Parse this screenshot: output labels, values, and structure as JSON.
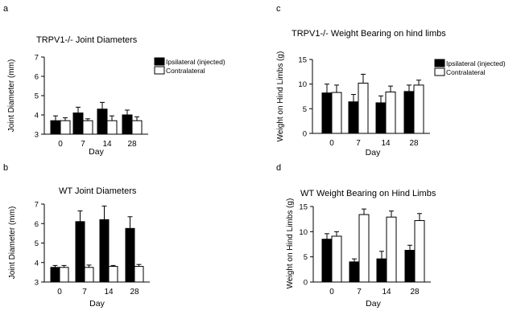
{
  "chart_data": [
    {
      "panel": "a",
      "type": "bar",
      "title": "TRPV1-/- Joint Diameters",
      "xlabel": "Day",
      "ylabel": "Joint Diameter (mm)",
      "categories": [
        "0",
        "7",
        "14",
        "28"
      ],
      "ylim": [
        3,
        7
      ],
      "yticks": [
        3,
        4,
        5,
        6,
        7
      ],
      "grid": false,
      "legend": "right",
      "series": [
        {
          "name": "Ipsilateral (injected)",
          "color": "#000000",
          "values": [
            3.7,
            4.1,
            4.3,
            4.0
          ],
          "errors": [
            0.25,
            0.3,
            0.35,
            0.25
          ]
        },
        {
          "name": "Contralateral",
          "color": "#ffffff",
          "values": [
            3.7,
            3.7,
            3.7,
            3.7
          ],
          "errors": [
            0.15,
            0.1,
            0.25,
            0.2
          ]
        }
      ]
    },
    {
      "panel": "b",
      "type": "bar",
      "title": "WT Joint Diameters",
      "xlabel": "Day",
      "ylabel": "Joint Diameter (mm)",
      "categories": [
        "0",
        "7",
        "14",
        "28"
      ],
      "ylim": [
        3,
        7
      ],
      "yticks": [
        3,
        4,
        5,
        6,
        7
      ],
      "grid": false,
      "legend": "none",
      "series": [
        {
          "name": "Ipsilateral (injected)",
          "color": "#000000",
          "values": [
            3.75,
            6.1,
            6.2,
            5.75
          ],
          "errors": [
            0.1,
            0.55,
            0.7,
            0.6
          ]
        },
        {
          "name": "Contralateral",
          "color": "#ffffff",
          "values": [
            3.75,
            3.75,
            3.8,
            3.8
          ],
          "errors": [
            0.1,
            0.12,
            0.05,
            0.1
          ]
        }
      ]
    },
    {
      "panel": "c",
      "type": "bar",
      "title": "TRPV1-/- Weight Bearing on hind limbs",
      "xlabel": "Day",
      "ylabel": "Weight on Hind Limbs (g)",
      "categories": [
        "0",
        "7",
        "14",
        "28"
      ],
      "ylim": [
        0,
        15
      ],
      "yticks": [
        0,
        5,
        10,
        15
      ],
      "grid": false,
      "legend": "right",
      "series": [
        {
          "name": "Ipsilateral (injected)",
          "color": "#000000",
          "values": [
            8.2,
            6.4,
            6.2,
            8.5
          ],
          "errors": [
            1.8,
            1.5,
            1.4,
            1.3
          ]
        },
        {
          "name": "Contralateral",
          "color": "#ffffff",
          "values": [
            8.3,
            10.2,
            8.4,
            9.8
          ],
          "errors": [
            1.5,
            1.8,
            1.2,
            1.0
          ]
        }
      ]
    },
    {
      "panel": "d",
      "type": "bar",
      "title": "WT Weight Bearing on Hind Limbs",
      "xlabel": "Day",
      "ylabel": "Weight on Hind Limbs (g)",
      "categories": [
        "0",
        "7",
        "14",
        "28"
      ],
      "ylim": [
        0,
        15
      ],
      "yticks": [
        0,
        5,
        10,
        15
      ],
      "grid": false,
      "legend": "none",
      "series": [
        {
          "name": "Ipsilateral (injected)",
          "color": "#000000",
          "values": [
            8.5,
            4.0,
            4.6,
            6.3
          ],
          "errors": [
            1.1,
            0.6,
            1.5,
            1.0
          ]
        },
        {
          "name": "Contralateral",
          "color": "#ffffff",
          "values": [
            9.1,
            13.4,
            12.9,
            12.2
          ],
          "errors": [
            0.9,
            1.1,
            1.2,
            1.4
          ]
        }
      ]
    }
  ]
}
